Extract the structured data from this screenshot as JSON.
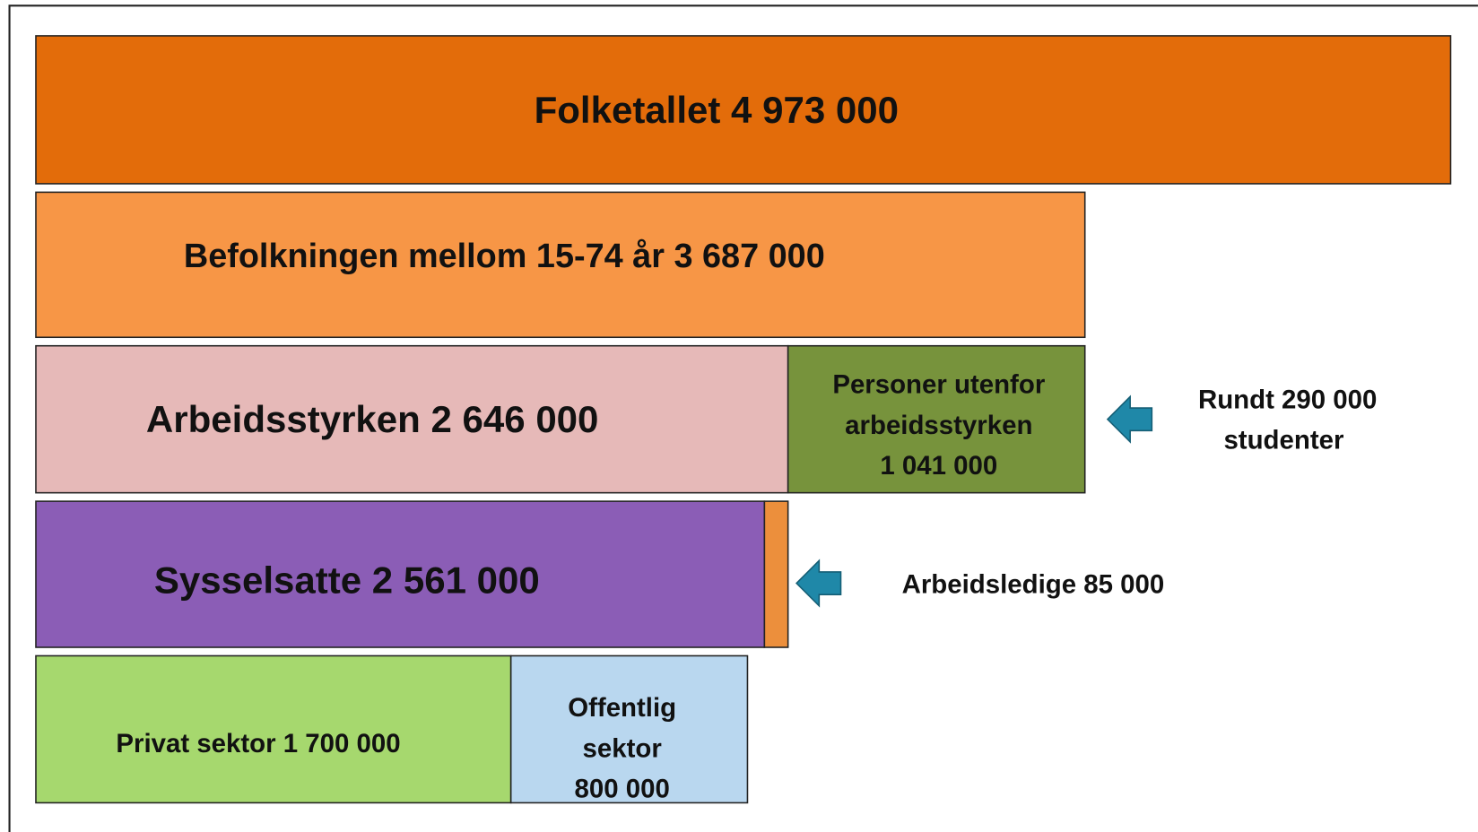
{
  "boxes": {
    "population": "Folketallet 4 973 000",
    "age_15_74": "Befolkningen mellom 15-74 år  3 687 000",
    "labour_force": "Arbeidsstyrken 2 646 000",
    "outside_labour_force": [
      "Personer utenfor",
      "arbeidsstyrken",
      "1 041 000"
    ],
    "employed": "Sysselsatte 2 561 000",
    "private_sector": "Privat sektor 1 700 000",
    "public_sector": [
      "Offentlig",
      "sektor",
      "800 000"
    ]
  },
  "notes": {
    "students": [
      "Rundt 290 000",
      "studenter"
    ],
    "unemployed": "Arbeidsledige 85 000"
  }
}
